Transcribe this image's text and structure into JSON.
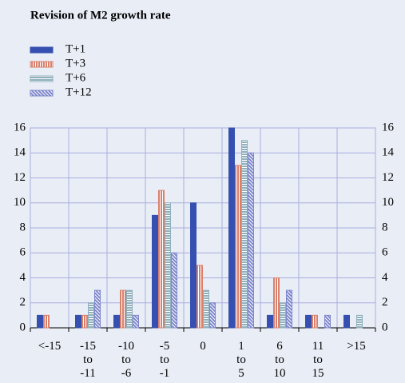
{
  "chart_data": {
    "type": "bar",
    "title": "Revision of M2 growth rate",
    "categories": [
      "<-15",
      "-15 to -11",
      "-10 to -6",
      "-5 to -1",
      "0",
      "1 to 5",
      "6 to 10",
      "11 to 15",
      ">15"
    ],
    "series": [
      {
        "name": "T+1",
        "color": "#3550b0",
        "pattern": "solid",
        "values": [
          1,
          1,
          1,
          9,
          10,
          16,
          1,
          1,
          1
        ]
      },
      {
        "name": "T+3",
        "color": "#d9806c",
        "pattern": "vertical",
        "values": [
          1,
          1,
          3,
          11,
          5,
          13,
          4,
          1,
          0
        ]
      },
      {
        "name": "T+6",
        "color": "#8fb0bc",
        "pattern": "horizontal",
        "values": [
          0,
          2,
          3,
          10,
          3,
          15,
          2,
          0,
          1
        ]
      },
      {
        "name": "T+12",
        "color": "#7f87cc",
        "pattern": "diagonal",
        "values": [
          0,
          3,
          1,
          6,
          2,
          14,
          3,
          1,
          0
        ]
      }
    ],
    "ylim": [
      0,
      16
    ],
    "yticks": [
      0,
      2,
      4,
      6,
      8,
      10,
      12,
      14,
      16
    ],
    "grid": true
  }
}
